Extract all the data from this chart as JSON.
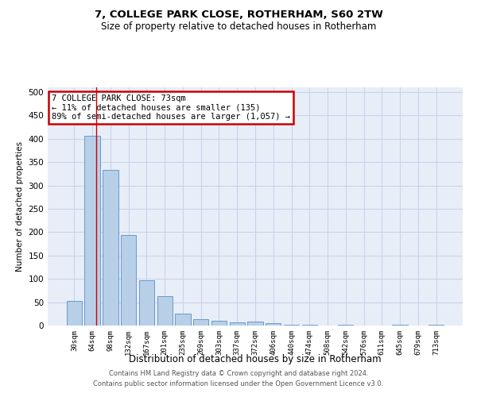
{
  "title1": "7, COLLEGE PARK CLOSE, ROTHERHAM, S60 2TW",
  "title2": "Size of property relative to detached houses in Rotherham",
  "xlabel": "Distribution of detached houses by size in Rotherham",
  "ylabel": "Number of detached properties",
  "categories": [
    "30sqm",
    "64sqm",
    "98sqm",
    "132sqm",
    "167sqm",
    "201sqm",
    "235sqm",
    "269sqm",
    "303sqm",
    "337sqm",
    "372sqm",
    "406sqm",
    "440sqm",
    "474sqm",
    "508sqm",
    "542sqm",
    "576sqm",
    "611sqm",
    "645sqm",
    "679sqm",
    "713sqm"
  ],
  "values": [
    52,
    407,
    333,
    193,
    97,
    63,
    25,
    13,
    10,
    6,
    8,
    5,
    2,
    1,
    0,
    1,
    0,
    0,
    2,
    0,
    1
  ],
  "bar_color": "#b8cfe8",
  "bar_edge_color": "#6699cc",
  "red_line_x": 1.2,
  "annotation_text": "7 COLLEGE PARK CLOSE: 73sqm\n← 11% of detached houses are smaller (135)\n89% of semi-detached houses are larger (1,057) →",
  "annotation_box_color": "#ffffff",
  "annotation_box_edge": "#cc0000",
  "grid_color": "#c8d4e8",
  "background_color": "#e8eef8",
  "ylim": [
    0,
    510
  ],
  "yticks": [
    0,
    50,
    100,
    150,
    200,
    250,
    300,
    350,
    400,
    450,
    500
  ],
  "footer1": "Contains HM Land Registry data © Crown copyright and database right 2024.",
  "footer2": "Contains public sector information licensed under the Open Government Licence v3.0."
}
